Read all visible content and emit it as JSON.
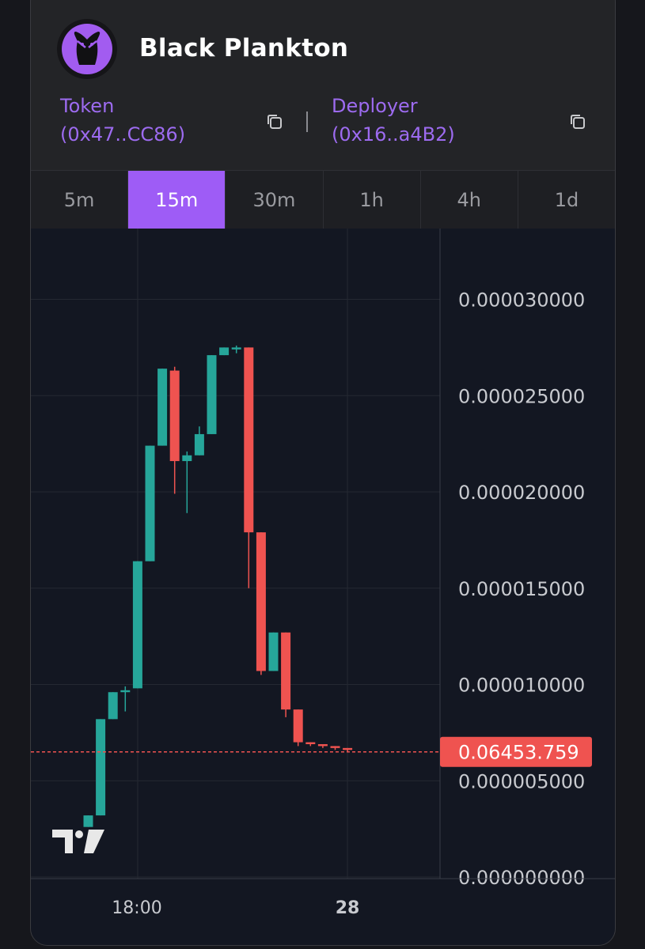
{
  "header": {
    "title": "Black Plankton",
    "token": {
      "label": "Token",
      "address": "(0x47..CC86)"
    },
    "deployer": {
      "label": "Deployer",
      "address": "(0x16..a4B2)"
    },
    "separator": "|"
  },
  "tabs": [
    {
      "label": "5m",
      "active": false
    },
    {
      "label": "15m",
      "active": true
    },
    {
      "label": "30m",
      "active": false
    },
    {
      "label": "1h",
      "active": false
    },
    {
      "label": "4h",
      "active": false
    },
    {
      "label": "1d",
      "active": false
    }
  ],
  "colors": {
    "up": "#26a69a",
    "down": "#ef5350",
    "accent": "#9e5cf6",
    "price_tag": "#ef5350"
  },
  "chart_data": {
    "type": "candlestick",
    "x_ticks": [
      "18:00",
      "28"
    ],
    "y_ticks": [
      "0.000030000",
      "0.000025000",
      "0.000020000",
      "0.000015000",
      "0.000010000",
      "0.000005000",
      "0.000000000"
    ],
    "ylim": [
      0,
      3.4e-05
    ],
    "current_price_label": "0.06453.759",
    "current_price": 6.5e-06,
    "candles": [
      {
        "o": 2.6e-06,
        "h": 3.2e-06,
        "l": 2.6e-06,
        "c": 3.2e-06
      },
      {
        "o": 3.2e-06,
        "h": 8.2e-06,
        "l": 3.2e-06,
        "c": 8.2e-06
      },
      {
        "o": 8.2e-06,
        "h": 9.6e-06,
        "l": 8.2e-06,
        "c": 9.6e-06
      },
      {
        "o": 9.6e-06,
        "h": 9.9e-06,
        "l": 8.6e-06,
        "c": 9.7e-06
      },
      {
        "o": 9.8e-06,
        "h": 1.64e-05,
        "l": 9.8e-06,
        "c": 1.64e-05
      },
      {
        "o": 1.64e-05,
        "h": 2.24e-05,
        "l": 1.64e-05,
        "c": 2.24e-05
      },
      {
        "o": 2.24e-05,
        "h": 2.64e-05,
        "l": 2.24e-05,
        "c": 2.64e-05
      },
      {
        "o": 2.63e-05,
        "h": 2.65e-05,
        "l": 1.99e-05,
        "c": 2.16e-05
      },
      {
        "o": 2.16e-05,
        "h": 2.21e-05,
        "l": 1.89e-05,
        "c": 2.19e-05
      },
      {
        "o": 2.19e-05,
        "h": 2.34e-05,
        "l": 2.19e-05,
        "c": 2.3e-05
      },
      {
        "o": 2.3e-05,
        "h": 2.71e-05,
        "l": 2.3e-05,
        "c": 2.71e-05
      },
      {
        "o": 2.71e-05,
        "h": 2.75e-05,
        "l": 2.71e-05,
        "c": 2.75e-05
      },
      {
        "o": 2.74e-05,
        "h": 2.76e-05,
        "l": 2.72e-05,
        "c": 2.75e-05
      },
      {
        "o": 2.75e-05,
        "h": 2.75e-05,
        "l": 1.5e-05,
        "c": 1.79e-05
      },
      {
        "o": 1.79e-05,
        "h": 1.79e-05,
        "l": 1.05e-05,
        "c": 1.07e-05
      },
      {
        "o": 1.07e-05,
        "h": 1.27e-05,
        "l": 1.07e-05,
        "c": 1.27e-05
      },
      {
        "o": 1.27e-05,
        "h": 1.27e-05,
        "l": 8.3e-06,
        "c": 8.7e-06
      },
      {
        "o": 8.7e-06,
        "h": 8.7e-06,
        "l": 6.8e-06,
        "c": 7e-06
      },
      {
        "o": 7e-06,
        "h": 7e-06,
        "l": 6.8e-06,
        "c": 6.9e-06
      },
      {
        "o": 6.9e-06,
        "h": 6.9e-06,
        "l": 6.7e-06,
        "c": 6.8e-06
      },
      {
        "o": 6.8e-06,
        "h": 6.8e-06,
        "l": 6.6e-06,
        "c": 6.7e-06
      },
      {
        "o": 6.7e-06,
        "h": 6.7e-06,
        "l": 6.5e-06,
        "c": 6.6e-06
      }
    ]
  }
}
